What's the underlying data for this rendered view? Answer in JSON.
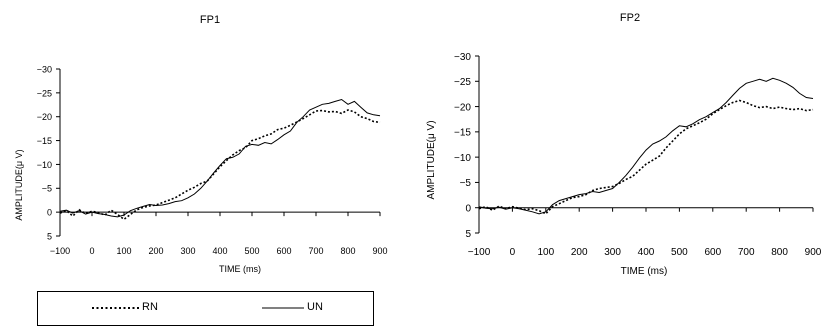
{
  "chart_data": [
    {
      "type": "line",
      "title": "FP1",
      "xlabel": "TIME (ms)",
      "ylabel": "AMPLITUDE(μ V)",
      "xlim": [
        -100,
        900
      ],
      "ylim": [
        5,
        -30
      ],
      "y_axis_inverted": true,
      "x_ticks": [
        -100,
        0,
        100,
        200,
        300,
        400,
        500,
        600,
        700,
        800,
        900
      ],
      "y_ticks": [
        -30,
        -25,
        -20,
        -15,
        -10,
        -5,
        0,
        5
      ],
      "x_tick_labels": [
        "−100",
        "0",
        "100",
        "200",
        "300",
        "400",
        "500",
        "600",
        "700",
        "800",
        "900"
      ],
      "y_tick_labels": [
        "−30",
        "−25",
        "−20",
        "−15",
        "−10",
        "−5",
        "0",
        "5"
      ],
      "grid": false,
      "series": [
        {
          "name": "RN",
          "style": "dotted",
          "x": [
            -100,
            -80,
            -60,
            -40,
            -20,
            0,
            20,
            40,
            60,
            80,
            100,
            120,
            140,
            160,
            180,
            200,
            220,
            240,
            260,
            280,
            300,
            320,
            340,
            360,
            380,
            400,
            420,
            440,
            460,
            480,
            500,
            520,
            540,
            560,
            580,
            600,
            620,
            640,
            660,
            680,
            700,
            720,
            740,
            760,
            780,
            800,
            820,
            840,
            860,
            880,
            900
          ],
          "values": [
            0.2,
            -0.3,
            0.8,
            -0.5,
            0.3,
            -0.2,
            0.1,
            0.6,
            -0.4,
            0.5,
            1.5,
            0.5,
            -0.5,
            -1.0,
            -1.3,
            -1.5,
            -2.0,
            -2.5,
            -3.0,
            -3.8,
            -4.6,
            -5.2,
            -6.0,
            -6.5,
            -8.0,
            -9.5,
            -10.8,
            -12.0,
            -12.9,
            -13.5,
            -15.0,
            -15.4,
            -16.0,
            -16.4,
            -17.3,
            -17.6,
            -18.2,
            -18.9,
            -19.6,
            -20.4,
            -21.2,
            -21.3,
            -21.0,
            -21.1,
            -20.7,
            -21.4,
            -21.0,
            -20.0,
            -19.6,
            -19.0,
            -18.8
          ]
        },
        {
          "name": "UN",
          "style": "solid",
          "x": [
            -100,
            -80,
            -60,
            -40,
            -20,
            0,
            20,
            40,
            60,
            80,
            100,
            120,
            140,
            160,
            180,
            200,
            220,
            240,
            260,
            280,
            300,
            320,
            340,
            360,
            380,
            400,
            420,
            440,
            460,
            480,
            500,
            520,
            540,
            560,
            580,
            600,
            620,
            640,
            660,
            680,
            700,
            720,
            740,
            760,
            780,
            800,
            820,
            840,
            860,
            880,
            900
          ],
          "values": [
            -0.2,
            -0.4,
            0.2,
            -0.3,
            0.4,
            0.0,
            0.3,
            0.5,
            0.8,
            1.0,
            0.6,
            -0.3,
            -0.8,
            -1.2,
            -1.6,
            -1.4,
            -1.5,
            -1.8,
            -2.2,
            -2.4,
            -3.0,
            -3.8,
            -5.0,
            -6.5,
            -8.2,
            -9.8,
            -11.2,
            -11.5,
            -12.2,
            -13.8,
            -14.2,
            -14.0,
            -14.6,
            -14.3,
            -15.2,
            -16.2,
            -17.0,
            -18.8,
            -20.0,
            -21.4,
            -22.0,
            -22.6,
            -22.8,
            -23.2,
            -23.6,
            -22.6,
            -23.2,
            -22.0,
            -20.8,
            -20.4,
            -20.2
          ]
        }
      ]
    },
    {
      "type": "line",
      "title": "FP2",
      "xlabel": "TIME (ms)",
      "ylabel": "AMPLITUDE(μ V)",
      "xlim": [
        -100,
        900
      ],
      "ylim": [
        5,
        -30
      ],
      "y_axis_inverted": true,
      "x_ticks": [
        -100,
        0,
        100,
        200,
        300,
        400,
        500,
        600,
        700,
        800,
        900
      ],
      "y_ticks": [
        -30,
        -25,
        -20,
        -15,
        -10,
        -5,
        0,
        5
      ],
      "x_tick_labels": [
        "−100",
        "0",
        "100",
        "200",
        "300",
        "400",
        "500",
        "600",
        "700",
        "800",
        "900"
      ],
      "y_tick_labels": [
        "−30",
        "−25",
        "−20",
        "−15",
        "−10",
        "−5",
        "0",
        "5"
      ],
      "grid": false,
      "series": [
        {
          "name": "RN",
          "style": "dotted",
          "x": [
            -100,
            -80,
            -60,
            -40,
            -20,
            0,
            20,
            40,
            60,
            80,
            100,
            120,
            140,
            160,
            180,
            200,
            220,
            240,
            260,
            280,
            300,
            320,
            340,
            360,
            380,
            400,
            420,
            440,
            460,
            480,
            500,
            520,
            540,
            560,
            580,
            600,
            620,
            640,
            660,
            680,
            700,
            720,
            740,
            760,
            780,
            800,
            820,
            840,
            860,
            880,
            900
          ],
          "values": [
            0.2,
            -0.2,
            0.5,
            -0.3,
            0.2,
            -0.2,
            0.1,
            0.4,
            0.2,
            0.6,
            1.2,
            -0.2,
            -0.8,
            -1.4,
            -2.0,
            -2.2,
            -2.6,
            -3.4,
            -3.8,
            -4.0,
            -4.2,
            -4.8,
            -5.6,
            -6.2,
            -7.4,
            -8.6,
            -9.4,
            -10.2,
            -11.8,
            -13.2,
            -14.6,
            -15.6,
            -16.2,
            -16.8,
            -17.5,
            -18.6,
            -19.4,
            -20.2,
            -20.8,
            -21.2,
            -20.8,
            -20.2,
            -19.8,
            -20.0,
            -19.6,
            -19.9,
            -19.6,
            -19.4,
            -19.6,
            -19.2,
            -19.4
          ]
        },
        {
          "name": "UN",
          "style": "solid",
          "x": [
            -100,
            -80,
            -60,
            -40,
            -20,
            0,
            20,
            40,
            60,
            80,
            100,
            120,
            140,
            160,
            180,
            200,
            220,
            240,
            260,
            280,
            300,
            320,
            340,
            360,
            380,
            400,
            420,
            440,
            460,
            480,
            500,
            520,
            540,
            560,
            580,
            600,
            620,
            640,
            660,
            680,
            700,
            720,
            740,
            760,
            780,
            800,
            820,
            840,
            860,
            880,
            900
          ],
          "values": [
            -0.2,
            0.1,
            0.2,
            -0.1,
            0.3,
            0.0,
            0.2,
            0.5,
            0.8,
            1.2,
            0.8,
            -0.6,
            -1.4,
            -1.8,
            -2.2,
            -2.6,
            -2.8,
            -3.2,
            -3.0,
            -3.4,
            -3.8,
            -5.0,
            -6.4,
            -8.0,
            -9.8,
            -11.4,
            -12.6,
            -13.2,
            -14.0,
            -15.2,
            -16.2,
            -16.0,
            -16.6,
            -17.4,
            -18.0,
            -18.8,
            -19.6,
            -20.8,
            -22.2,
            -23.6,
            -24.6,
            -25.0,
            -25.4,
            -25.0,
            -25.6,
            -25.2,
            -24.6,
            -23.8,
            -22.6,
            -21.8,
            -21.6
          ]
        }
      ]
    }
  ],
  "legend": {
    "items": [
      {
        "label": "RN",
        "style": "dotted"
      },
      {
        "label": "UN",
        "style": "solid"
      }
    ]
  },
  "colors": {
    "line": "#000000",
    "background": "#ffffff"
  }
}
